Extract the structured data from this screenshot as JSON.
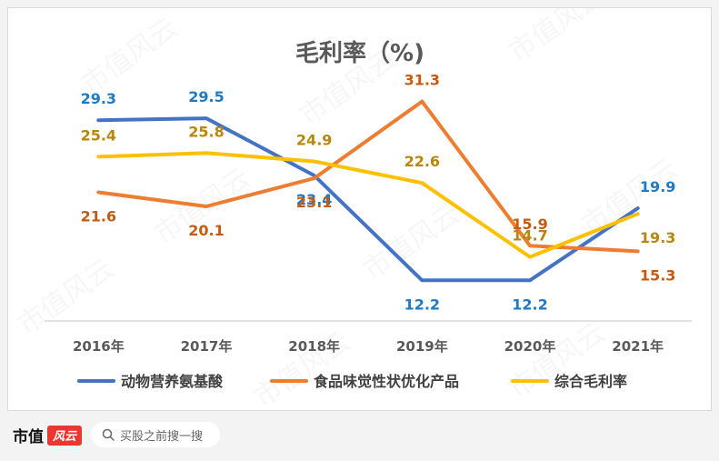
{
  "chart_data": {
    "type": "line",
    "title": "毛利率（%)",
    "categories": [
      "2016年",
      "2017年",
      "2018年",
      "2019年",
      "2020年",
      "2021年"
    ],
    "series": [
      {
        "name": "动物营养氨基酸",
        "color": "#4472c4",
        "label_color": "#1f7ac2",
        "values": [
          29.3,
          29.5,
          23.4,
          12.2,
          12.2,
          19.9
        ]
      },
      {
        "name": "食品味觉性状优化产品",
        "color": "#ed7d31",
        "label_color": "#c55a11",
        "values": [
          21.6,
          20.1,
          23.1,
          31.3,
          15.9,
          15.3
        ]
      },
      {
        "name": "综合毛利率",
        "color": "#ffc000",
        "label_color": "#b8860b",
        "values": [
          25.4,
          25.8,
          24.9,
          22.6,
          14.7,
          19.3
        ]
      }
    ],
    "ylim": [
      10,
      33
    ],
    "grid": false,
    "legend_position": "bottom"
  },
  "watermark": "市值风云",
  "footer": {
    "brand": "市值",
    "brand_logo": "风云",
    "search_placeholder": "买股之前搜一搜"
  }
}
